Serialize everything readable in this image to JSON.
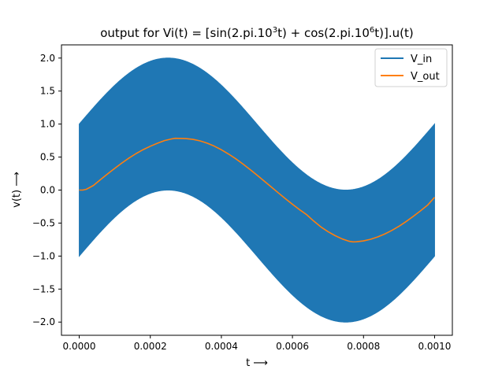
{
  "chart_data": {
    "type": "line",
    "title": {
      "prefix": "output for Vi(t) = [sin(2.pi.10",
      "exp1": "3",
      "middle": "t) + cos(2.pi.10",
      "exp2": "6",
      "suffix": "t)].u(t)"
    },
    "xlabel": "t ⟶",
    "ylabel": "v(t) ⟶",
    "xlim": [
      -5e-05,
      0.00105
    ],
    "ylim": [
      -2.2,
      2.2
    ],
    "x_ticks": [
      0,
      0.0002,
      0.0004,
      0.0006,
      0.0008,
      0.001
    ],
    "x_tick_labels": [
      "0.0000",
      "0.0002",
      "0.0004",
      "0.0006",
      "0.0008",
      "0.0010"
    ],
    "y_ticks": [
      -2.0,
      -1.5,
      -1.0,
      -0.5,
      0.0,
      0.5,
      1.0,
      1.5,
      2.0
    ],
    "y_tick_labels": [
      "−2.0",
      "−1.5",
      "−1.0",
      "−0.5",
      "0.0",
      "0.5",
      "1.0",
      "1.5",
      "2.0"
    ],
    "grid": false,
    "legend_position": "top-right",
    "series": [
      {
        "name": "V_in",
        "color": "#1f77b4",
        "description": "sin(2*pi*1e3*t) + cos(2*pi*1e6*t), sampled densely so it appears as a filled band",
        "t_start": 0,
        "t_end": 0.001,
        "low_freq_hz": 1000,
        "high_freq_hz": 1000000,
        "envelope_upper": [
          [
            0,
            1.0
          ],
          [
            0.0001,
            1.588
          ],
          [
            0.0002,
            1.951
          ],
          [
            0.00025,
            2.0
          ],
          [
            0.0003,
            1.951
          ],
          [
            0.0004,
            1.588
          ],
          [
            0.0005,
            1.0
          ],
          [
            0.0006,
            0.412
          ],
          [
            0.0007,
            0.049
          ],
          [
            0.00075,
            0.0
          ],
          [
            0.0008,
            0.049
          ],
          [
            0.0009,
            0.412
          ],
          [
            0.001,
            1.0
          ]
        ],
        "envelope_lower": [
          [
            0,
            -1.0
          ],
          [
            0.0001,
            -0.412
          ],
          [
            0.0002,
            -0.049
          ],
          [
            0.00025,
            0.0
          ],
          [
            0.0003,
            -0.049
          ],
          [
            0.0004,
            -0.412
          ],
          [
            0.0005,
            -1.0
          ],
          [
            0.0006,
            -1.588
          ],
          [
            0.0007,
            -1.951
          ],
          [
            0.00075,
            -2.0
          ],
          [
            0.0008,
            -1.951
          ],
          [
            0.0009,
            -1.588
          ],
          [
            0.001,
            -1.0
          ]
        ]
      },
      {
        "name": "V_out",
        "color": "#ff7f0e",
        "x": [
          0,
          1e-05,
          2e-05,
          4e-05,
          6e-05,
          8e-05,
          0.0001,
          0.00012,
          0.00014,
          0.00016,
          0.00018,
          0.0002,
          0.00022,
          0.00024,
          0.00026,
          0.00027,
          0.00028,
          0.0003,
          0.00032,
          0.00034,
          0.00036,
          0.00038,
          0.0004,
          0.00042,
          0.00044,
          0.00046,
          0.00048,
          0.0005,
          0.00052,
          0.00054,
          0.00056,
          0.00058,
          0.0006,
          0.00062,
          0.00064,
          0.00066,
          0.00068,
          0.0007,
          0.00072,
          0.00074,
          0.00076,
          0.00077,
          0.00078,
          0.0008,
          0.00082,
          0.00084,
          0.00086,
          0.00088,
          0.0009,
          0.00092,
          0.00094,
          0.00096,
          0.00098,
          0.001
        ],
        "y": [
          0.0,
          0.0,
          0.012,
          0.07,
          0.159,
          0.246,
          0.33,
          0.41,
          0.485,
          0.553,
          0.613,
          0.664,
          0.71,
          0.75,
          0.775,
          0.785,
          0.783,
          0.78,
          0.768,
          0.745,
          0.711,
          0.666,
          0.611,
          0.547,
          0.476,
          0.398,
          0.315,
          0.228,
          0.139,
          0.049,
          -0.041,
          -0.13,
          -0.215,
          -0.297,
          -0.373,
          -0.47,
          -0.558,
          -0.63,
          -0.69,
          -0.74,
          -0.776,
          -0.785,
          -0.783,
          -0.77,
          -0.745,
          -0.71,
          -0.665,
          -0.61,
          -0.548,
          -0.476,
          -0.398,
          -0.316,
          -0.23,
          -0.11
        ]
      }
    ]
  }
}
